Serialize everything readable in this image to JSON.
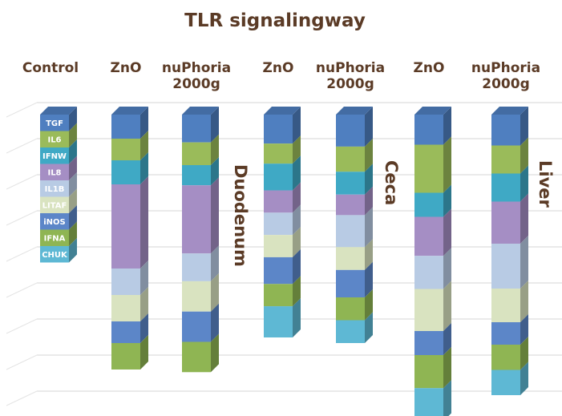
{
  "chart_data": {
    "type": "bar",
    "stacked": true,
    "style": "3d-stacked-columns",
    "title": "TLR signalingway",
    "legend_column_label": "Control",
    "categories": [
      "TGF",
      "IL6",
      "IFNW",
      "IL8",
      "IL1B",
      "LITAF",
      "iNOS",
      "IFNA",
      "CHUK"
    ],
    "colors": [
      "#4f7fc0",
      "#9abb5a",
      "#3fa9c5",
      "#a58ec4",
      "#b8cbe4",
      "#d9e3c0",
      "#5c86c8",
      "#8fb553",
      "#5eb8d4"
    ],
    "control_relative": [
      0.1,
      0.1,
      0.1,
      0.1,
      0.1,
      0.1,
      0.1,
      0.1,
      0.1
    ],
    "tissues": [
      {
        "name": "Duodenum",
        "series": [
          {
            "name": "ZnO",
            "relative": [
              0.1,
              0.09,
              0.1,
              0.35,
              0.11,
              0.11,
              0.09,
              0.11,
              0.0
            ]
          },
          {
            "name": "nuPhoria 2000g",
            "relative": [
              0.11,
              0.09,
              0.08,
              0.27,
              0.11,
              0.12,
              0.12,
              0.12,
              0.0
            ]
          }
        ]
      },
      {
        "name": "Ceca",
        "series": [
          {
            "name": "ZnO",
            "relative": [
              0.13,
              0.09,
              0.12,
              0.1,
              0.1,
              0.1,
              0.12,
              0.1,
              0.14
            ]
          },
          {
            "name": "nuPhoria 2000g",
            "relative": [
              0.14,
              0.11,
              0.1,
              0.09,
              0.14,
              0.1,
              0.12,
              0.1,
              0.1
            ]
          }
        ]
      },
      {
        "name": "Liver",
        "series": [
          {
            "name": "ZnO",
            "relative": [
              0.1,
              0.16,
              0.08,
              0.13,
              0.11,
              0.14,
              0.08,
              0.11,
              0.11
            ]
          },
          {
            "name": "nuPhoria 2000g",
            "relative": [
              0.11,
              0.1,
              0.1,
              0.15,
              0.16,
              0.12,
              0.08,
              0.09,
              0.09
            ]
          }
        ]
      }
    ]
  }
}
